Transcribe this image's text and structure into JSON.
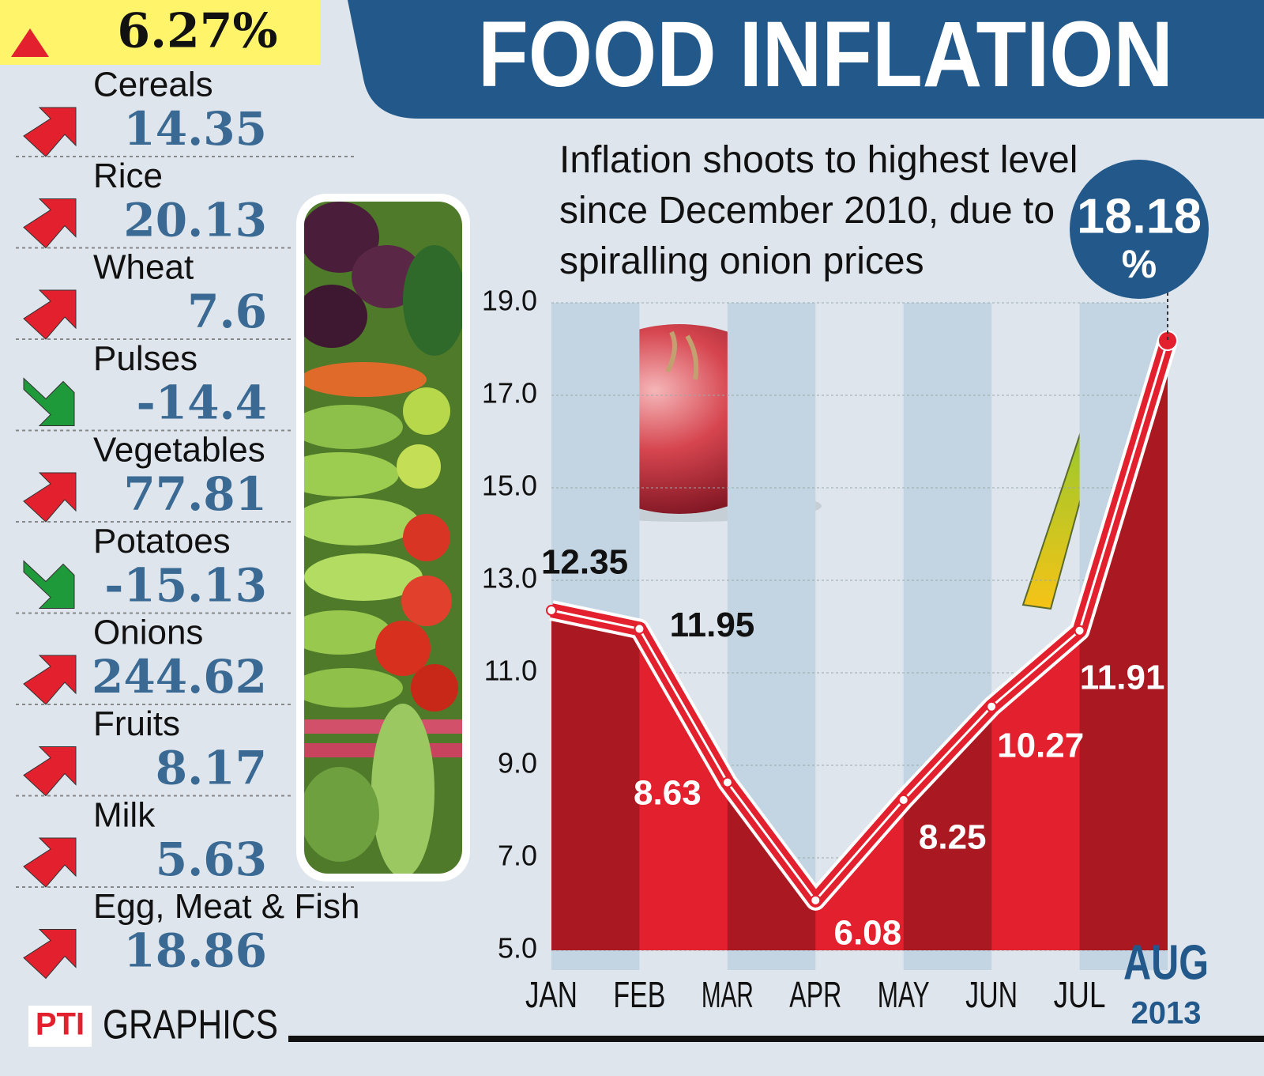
{
  "header": {
    "indicator": "6.27%",
    "title": "FOOD INFLATION"
  },
  "breakdown": [
    {
      "label": "Cereals",
      "value": 14.35
    },
    {
      "label": "Rice",
      "value": 20.13
    },
    {
      "label": "Wheat",
      "value": 7.6
    },
    {
      "label": "Pulses",
      "value": -14.4
    },
    {
      "label": "Vegetables",
      "value": 77.81
    },
    {
      "label": "Potatoes",
      "value": -15.13
    },
    {
      "label": "Onions",
      "value": 244.62
    },
    {
      "label": "Fruits",
      "value": 8.17
    },
    {
      "label": "Milk",
      "value": 5.63
    },
    {
      "label": "Egg, Meat & Fish",
      "value": 18.86
    }
  ],
  "chart_data": {
    "type": "area",
    "subtitle": "Inflation shoots to highest level since December 2010, due to spiralling onion prices",
    "categories": [
      "JAN",
      "FEB",
      "MAR",
      "APR",
      "MAY",
      "JUN",
      "JUL",
      "AUG"
    ],
    "year": "2013",
    "values": [
      12.35,
      11.95,
      8.63,
      6.08,
      8.25,
      10.27,
      11.91,
      18.18
    ],
    "highlight_unit": "%",
    "color": "#e3202e",
    "ylim": [
      5,
      19
    ],
    "yticks": [
      {
        "value": 5,
        "label": "5.0"
      },
      {
        "value": 7,
        "label": "7.0"
      },
      {
        "value": 9,
        "label": "9.0"
      },
      {
        "value": 11,
        "label": "11.0"
      },
      {
        "value": 13,
        "label": "13.0"
      },
      {
        "value": 15,
        "label": "15.0"
      },
      {
        "value": 17,
        "label": "17.0"
      },
      {
        "value": 19,
        "label": "19.0"
      }
    ],
    "grid": true
  },
  "footer": {
    "logo": "PTI",
    "source": "GRAPHICS"
  }
}
